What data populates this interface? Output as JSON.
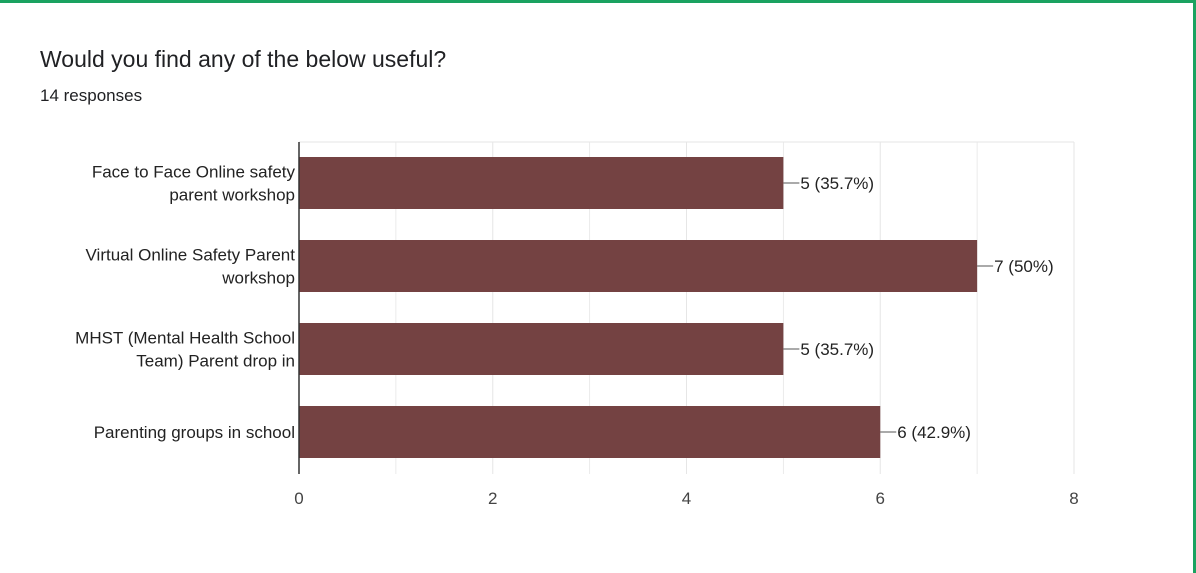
{
  "question": {
    "title": "Would you find any of the below useful?",
    "responses": "14 responses"
  },
  "colors": {
    "accent": "#1aa260",
    "bar": "#744242",
    "grid": "#e6e6e6",
    "axis": "#333333"
  },
  "chart_data": {
    "type": "bar",
    "orientation": "horizontal",
    "categories": [
      [
        "Face to Face Online safety",
        "parent workshop"
      ],
      [
        "Virtual Online Safety Parent",
        "workshop"
      ],
      [
        "MHST (Mental Health School",
        "Team) Parent drop in"
      ],
      [
        "Parenting groups in school"
      ]
    ],
    "values": [
      5,
      7,
      5,
      6
    ],
    "data_labels": [
      "5 (35.7%)",
      "7 (50%)",
      "5 (35.7%)",
      "6 (42.9%)"
    ],
    "xticks": [
      "0",
      "2",
      "4",
      "6",
      "8"
    ],
    "xlim": [
      0,
      8
    ],
    "grid": true,
    "legend": "none"
  }
}
